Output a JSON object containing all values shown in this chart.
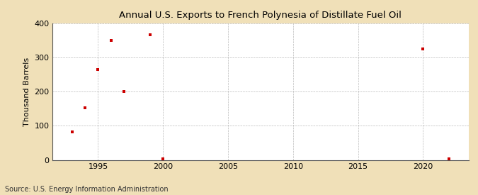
{
  "title": "Annual U.S. Exports to French Polynesia of Distillate Fuel Oil",
  "ylabel": "Thousand Barrels",
  "source": "Source: U.S. Energy Information Administration",
  "figure_bg_color": "#f0e0b8",
  "plot_bg_color": "#ffffff",
  "marker_color": "#cc0000",
  "grid_color": "#aaaaaa",
  "xlim": [
    1991.5,
    2023.5
  ],
  "ylim": [
    0,
    400
  ],
  "yticks": [
    0,
    100,
    200,
    300,
    400
  ],
  "xticks": [
    1995,
    2000,
    2005,
    2010,
    2015,
    2020
  ],
  "data_x": [
    1993,
    1994,
    1995,
    1996,
    1997,
    1999,
    2000,
    2020,
    2022
  ],
  "data_y": [
    83,
    153,
    265,
    350,
    200,
    367,
    3,
    326,
    3
  ]
}
